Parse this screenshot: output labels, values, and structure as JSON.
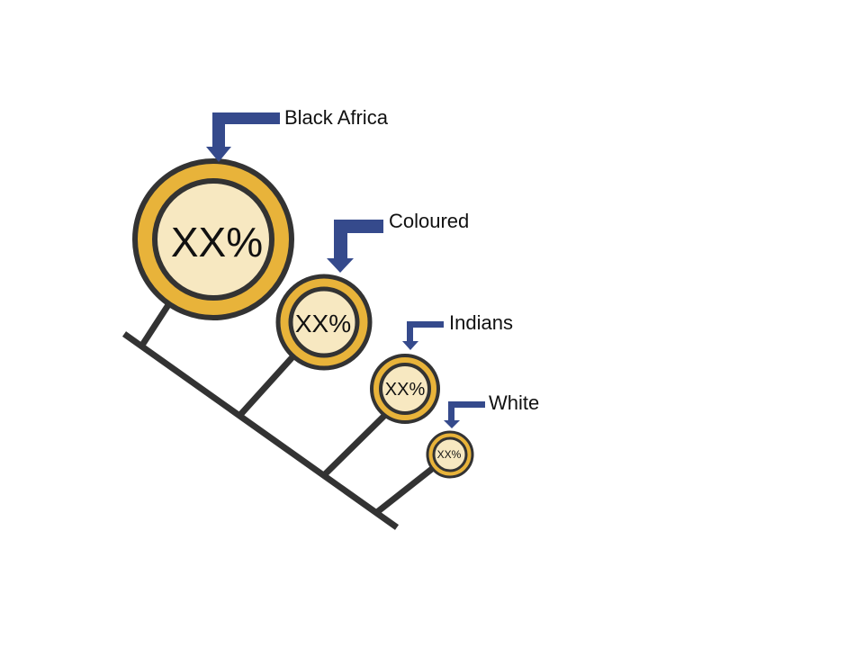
{
  "colors": {
    "stem": "#333333",
    "ring_outer": "#E8B33A",
    "ring_border": "#333333",
    "inner_fill": "#F7E8C1",
    "arrow": "#354A8C"
  },
  "groups": [
    {
      "label": "Black Africa",
      "value": "XX%"
    },
    {
      "label": "Coloured",
      "value": "XX%"
    },
    {
      "label": "Indians",
      "value": "XX%"
    },
    {
      "label": "White",
      "value": "XX%"
    }
  ]
}
